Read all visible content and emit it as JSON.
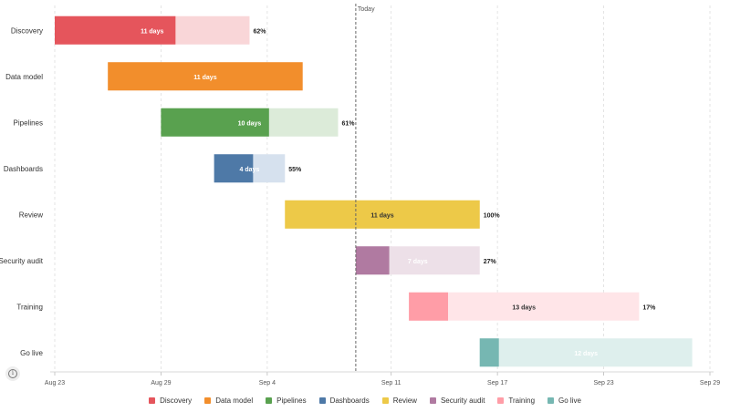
{
  "chart_data": {
    "type": "gantt",
    "today": {
      "label": "Today",
      "date": "2023-09-09"
    },
    "x_axis": {
      "range": [
        "2023-08-23",
        "2023-09-29"
      ],
      "ticks": [
        {
          "date": "2023-08-23",
          "label": "Aug 23"
        },
        {
          "date": "2023-08-29",
          "label": "Aug 29"
        },
        {
          "date": "2023-09-04",
          "label": "Sep 4"
        },
        {
          "date": "2023-09-11",
          "label": "Sep 11"
        },
        {
          "date": "2023-09-17",
          "label": "Sep 17"
        },
        {
          "date": "2023-09-23",
          "label": "Sep 23"
        },
        {
          "date": "2023-09-29",
          "label": "Sep 29"
        }
      ]
    },
    "tasks": [
      {
        "name": "Discovery",
        "start": "2023-08-23",
        "end": "2023-09-03",
        "duration_label": "11 days",
        "progress": 62,
        "progress_label": "62%",
        "color": "#e5555c",
        "light": "#f9d6d8",
        "text_color": "#ffffff"
      },
      {
        "name": "Data model",
        "start": "2023-08-26",
        "end": "2023-09-06",
        "duration_label": "11 days",
        "progress": 100,
        "progress_label": "",
        "color": "#f28e2c",
        "light": "#fce3c9",
        "text_color": "#ffffff"
      },
      {
        "name": "Pipelines",
        "start": "2023-08-29",
        "end": "2023-09-08",
        "duration_label": "10 days",
        "progress": 61,
        "progress_label": "61%",
        "color": "#59a14f",
        "light": "#dcebd9",
        "text_color": "#ffffff"
      },
      {
        "name": "Dashboards",
        "start": "2023-09-01",
        "end": "2023-09-05",
        "duration_label": "4 days",
        "progress": 55,
        "progress_label": "55%",
        "color": "#4e79a7",
        "light": "#d6e1ee",
        "text_color": "#ffffff"
      },
      {
        "name": "Review",
        "start": "2023-09-05",
        "end": "2023-09-16",
        "duration_label": "11 days",
        "progress": 100,
        "progress_label": "100%",
        "color": "#edc948",
        "light": "#faf0c8",
        "text_color": "#333333"
      },
      {
        "name": "Security audit",
        "start": "2023-09-09",
        "end": "2023-09-16",
        "duration_label": "7 days",
        "progress": 27,
        "progress_label": "27%",
        "color": "#b07aa1",
        "light": "#ede0e8",
        "text_color": "#ffffff"
      },
      {
        "name": "Training",
        "start": "2023-09-12",
        "end": "2023-09-25",
        "duration_label": "13 days",
        "progress": 17,
        "progress_label": "17%",
        "color": "#ff9da7",
        "light": "#ffe5e8",
        "text_color": "#333333"
      },
      {
        "name": "Go live",
        "start": "2023-09-16",
        "end": "2023-09-28",
        "duration_label": "12 days",
        "progress": 9,
        "progress_label": "",
        "color": "#76b7b2",
        "light": "#deefed",
        "text_color": "#ffffff"
      }
    ],
    "legend": {
      "placement": "bottom-center"
    },
    "grid": true
  },
  "info_icon": "info-icon"
}
